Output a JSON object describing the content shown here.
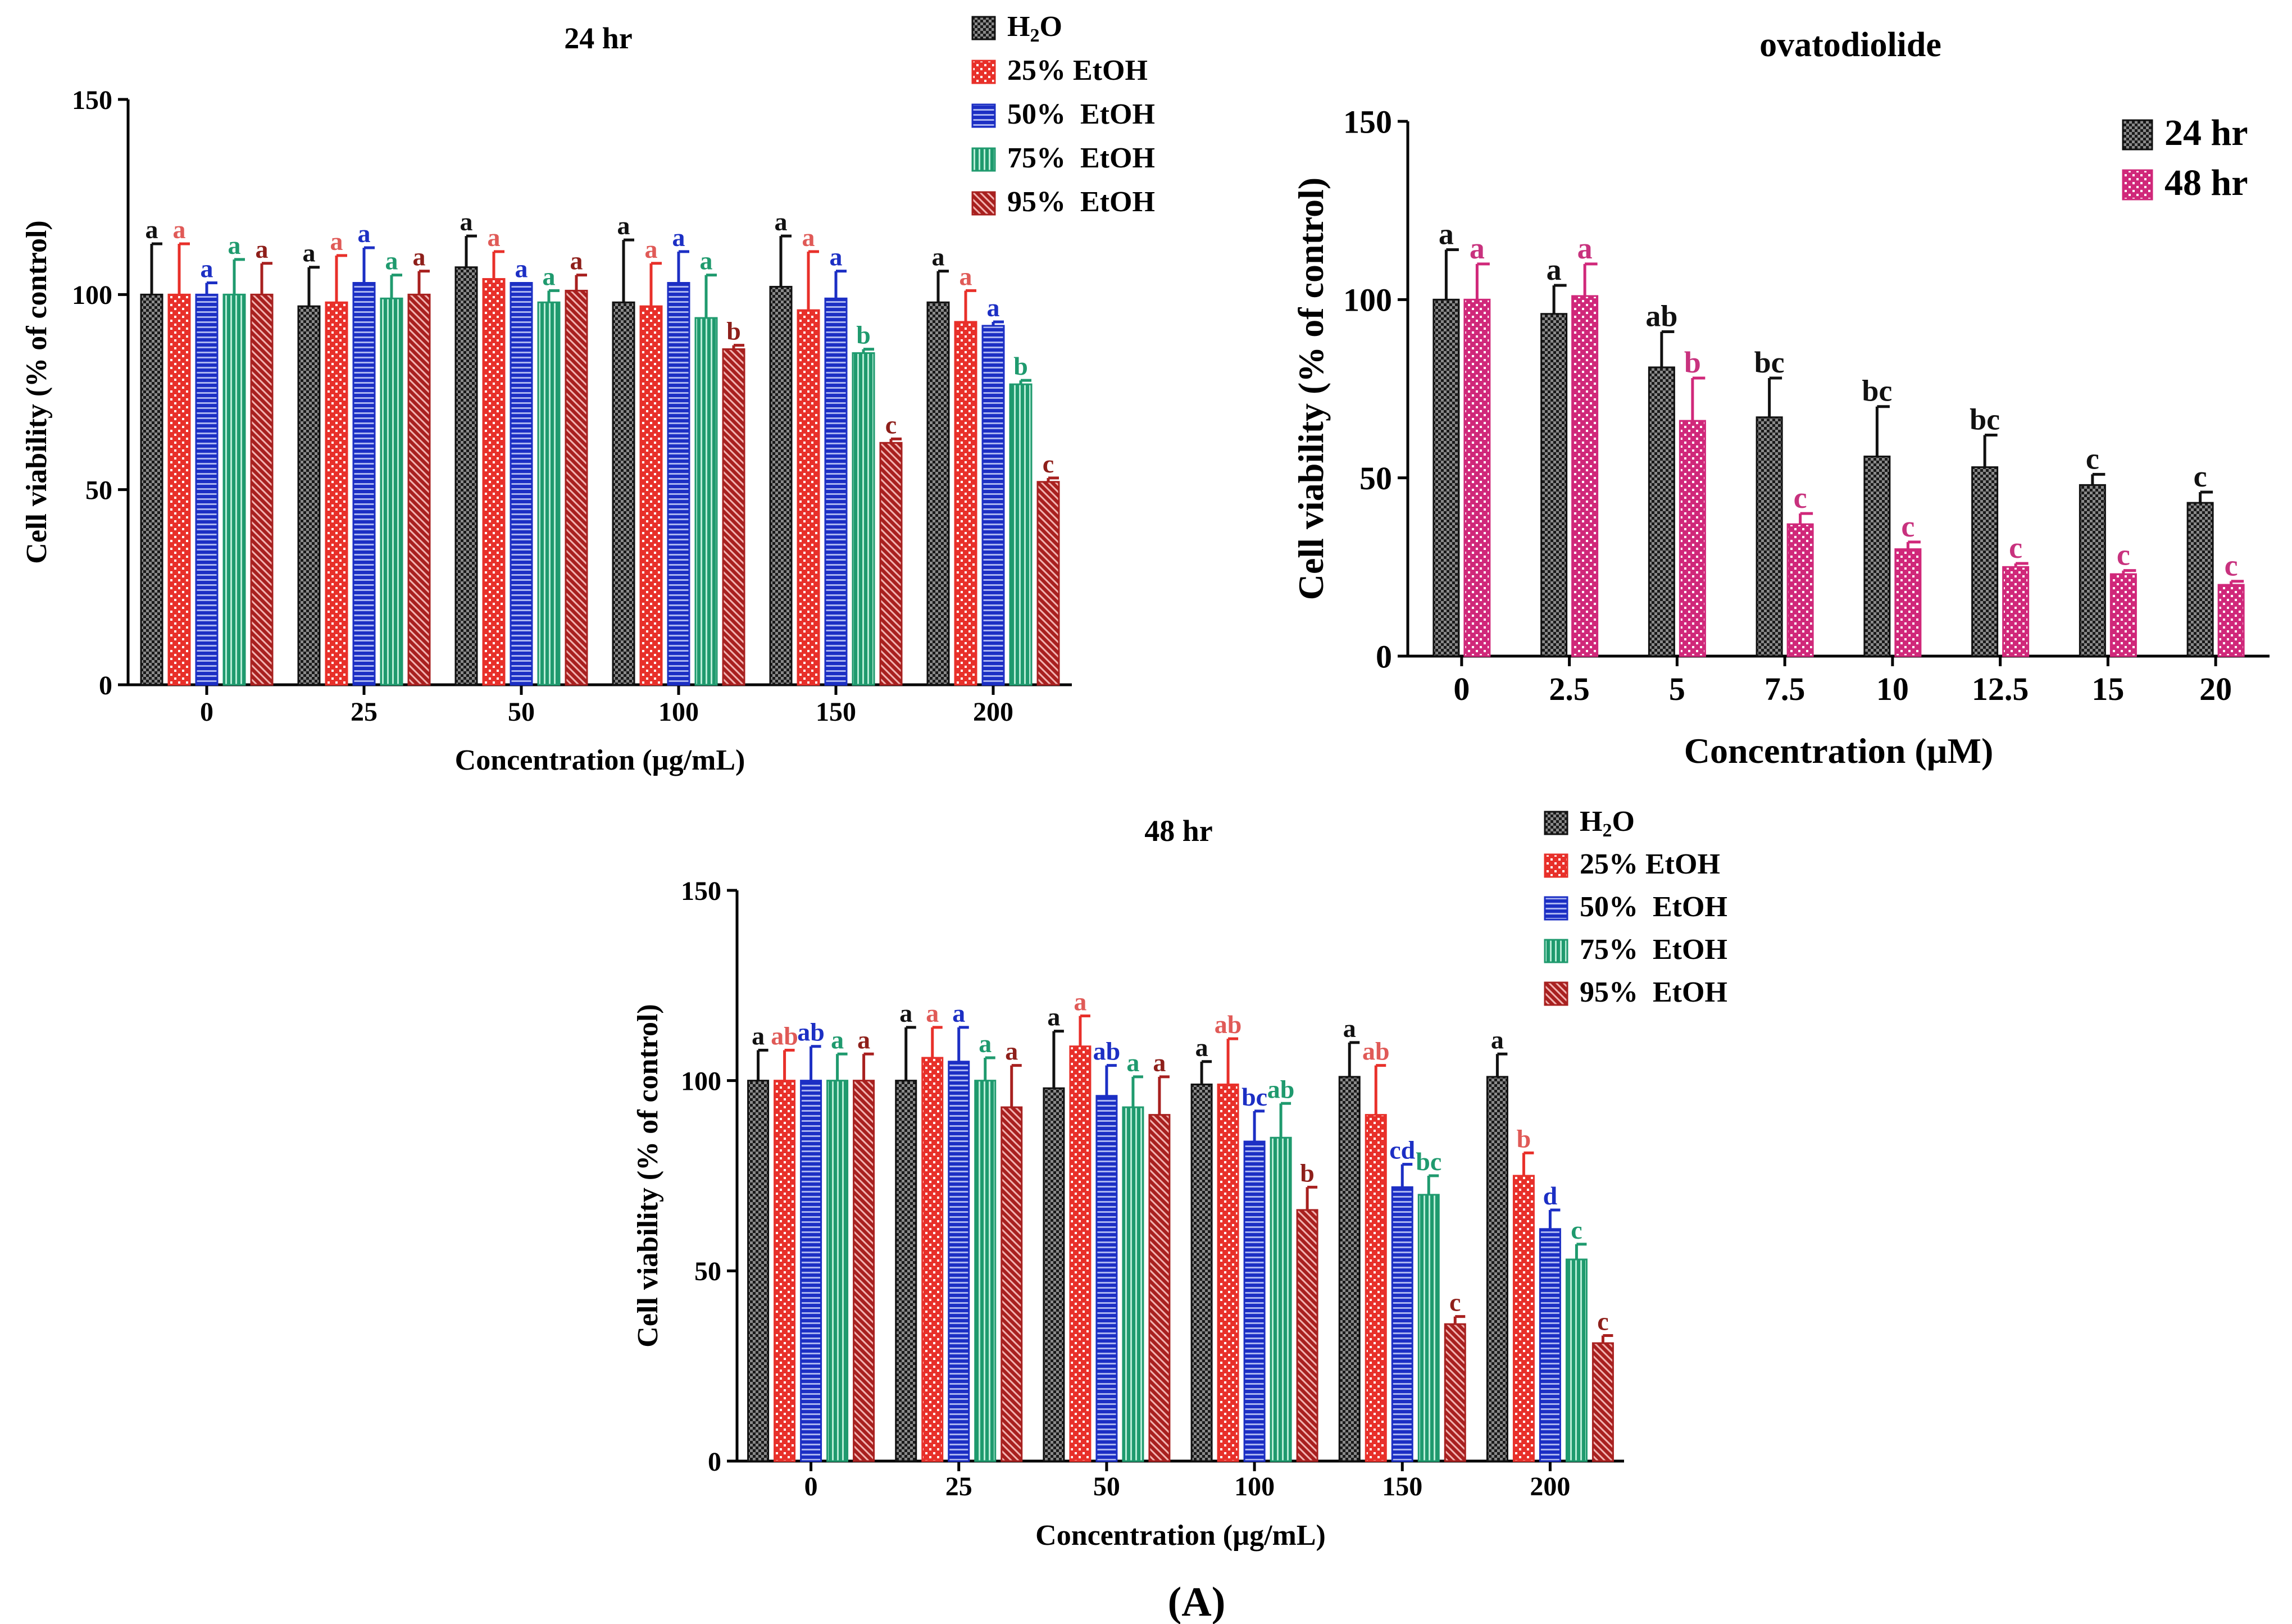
{
  "figure_label": "(A)",
  "chart_data": [
    {
      "id": "chart24",
      "type": "bar",
      "title": "24 hr",
      "xlabel": "Concentration (µg/mL)",
      "ylabel": "Cell viability (% of control)",
      "ylim": [
        0,
        150
      ],
      "yticks": [
        0,
        50,
        100,
        150
      ],
      "grid": false,
      "legend_position": "top-right",
      "categories": [
        "0",
        "25",
        "50",
        "100",
        "150",
        "200"
      ],
      "series": [
        {
          "name": "H2O",
          "legend": {
            "pre": "H",
            "sub": "2",
            "post": "O"
          },
          "pattern": "pat-h2o",
          "color": "#111111",
          "values": [
            100,
            97,
            107,
            98,
            102,
            98
          ],
          "errors": [
            13,
            10,
            8,
            16,
            13,
            8
          ],
          "letters": [
            "a",
            "a",
            "a",
            "a",
            "a",
            "a"
          ],
          "letter_color": "#111111"
        },
        {
          "name": "25% EtOH",
          "pattern": "pat-25",
          "color": "#e8302a",
          "values": [
            100,
            98,
            104,
            97,
            96,
            93
          ],
          "errors": [
            13,
            12,
            7,
            11,
            15,
            8
          ],
          "letters": [
            "a",
            "a",
            "a",
            "a",
            "a",
            "a"
          ],
          "letter_color": "#e05a57"
        },
        {
          "name": "50%  EtOH",
          "pattern": "pat-50",
          "color": "#1c2fc4",
          "values": [
            100,
            103,
            103,
            103,
            99,
            92
          ],
          "errors": [
            3,
            9,
            0,
            8,
            7,
            1
          ],
          "letters": [
            "a",
            "a",
            "a",
            "a",
            "a",
            "a"
          ],
          "letter_color": "#1c2fc4"
        },
        {
          "name": "75%  EtOH",
          "pattern": "pat-75",
          "color": "#1f9a6e",
          "values": [
            100,
            99,
            98,
            94,
            85,
            77
          ],
          "errors": [
            9,
            6,
            3,
            11,
            1,
            1
          ],
          "letters": [
            "a",
            "a",
            "a",
            "a",
            "b",
            "b"
          ],
          "letter_color": "#1f9a6e"
        },
        {
          "name": "95%  EtOH",
          "pattern": "pat-95",
          "color": "#a8201f",
          "values": [
            100,
            100,
            101,
            86,
            62,
            52
          ],
          "errors": [
            8,
            6,
            4,
            1,
            1,
            1
          ],
          "letters": [
            "a",
            "a",
            "a",
            "b",
            "c",
            "c"
          ],
          "letter_color": "#8e1f1a"
        }
      ]
    },
    {
      "id": "chartOva",
      "type": "bar",
      "title": "ovatodiolide",
      "xlabel": "Concentration (µM)",
      "ylabel": "Cell viability (% of control)",
      "ylim": [
        0,
        150
      ],
      "yticks": [
        0,
        50,
        100,
        150
      ],
      "grid": false,
      "legend_position": "top-right",
      "categories": [
        "0",
        "2.5",
        "5",
        "7.5",
        "10",
        "12.5",
        "15",
        "20"
      ],
      "series": [
        {
          "name": "24 hr",
          "pattern": "pat-h2o",
          "color": "#111111",
          "values": [
            100,
            96,
            81,
            67,
            56,
            53,
            48,
            43
          ],
          "errors": [
            14,
            8,
            10,
            11,
            14,
            9,
            3,
            3
          ],
          "letters": [
            "a",
            "a",
            "ab",
            "bc",
            "bc",
            "bc",
            "c",
            "c"
          ],
          "letter_color": "#111111"
        },
        {
          "name": "48 hr",
          "pattern": "pat-pink",
          "color": "#d0287a",
          "values": [
            100,
            101,
            66,
            37,
            30,
            25,
            23,
            20
          ],
          "errors": [
            10,
            9,
            12,
            3,
            2,
            1,
            1,
            1
          ],
          "letters": [
            "a",
            "a",
            "b",
            "c",
            "c",
            "c",
            "c",
            "c"
          ],
          "letter_color": "#c8327e"
        }
      ]
    },
    {
      "id": "chart48",
      "type": "bar",
      "title": "48 hr",
      "xlabel": "Concentration (µg/mL)",
      "ylabel": "Cell viability (% of control)",
      "ylim": [
        0,
        150
      ],
      "yticks": [
        0,
        50,
        100,
        150
      ],
      "grid": false,
      "legend_position": "top-right",
      "categories": [
        "0",
        "25",
        "50",
        "100",
        "150",
        "200"
      ],
      "series": [
        {
          "name": "H2O",
          "legend": {
            "pre": "H",
            "sub": "2",
            "post": "O"
          },
          "pattern": "pat-h2o",
          "color": "#111111",
          "values": [
            100,
            100,
            98,
            99,
            101,
            101
          ],
          "errors": [
            8,
            14,
            15,
            6,
            9,
            6
          ],
          "letters": [
            "a",
            "a",
            "a",
            "a",
            "a",
            "a"
          ],
          "letter_color": "#111111"
        },
        {
          "name": "25% EtOH",
          "pattern": "pat-25",
          "color": "#e8302a",
          "values": [
            100,
            106,
            109,
            99,
            91,
            75
          ],
          "errors": [
            8,
            8,
            8,
            12,
            13,
            6
          ],
          "letters": [
            "ab",
            "a",
            "a",
            "ab",
            "ab",
            "b"
          ],
          "letter_color": "#e05a57"
        },
        {
          "name": "50%  EtOH",
          "pattern": "pat-50",
          "color": "#1c2fc4",
          "values": [
            100,
            105,
            96,
            84,
            72,
            61
          ],
          "errors": [
            9,
            9,
            8,
            8,
            6,
            5
          ],
          "letters": [
            "ab",
            "a",
            "ab",
            "bc",
            "cd",
            "d"
          ],
          "letter_color": "#1c2fc4"
        },
        {
          "name": "75%  EtOH",
          "pattern": "pat-75",
          "color": "#1f9a6e",
          "values": [
            100,
            100,
            93,
            85,
            70,
            53
          ],
          "errors": [
            7,
            6,
            8,
            9,
            5,
            4
          ],
          "letters": [
            "a",
            "a",
            "a",
            "ab",
            "bc",
            "c"
          ],
          "letter_color": "#1f9a6e"
        },
        {
          "name": "95%  EtOH",
          "pattern": "pat-95",
          "color": "#a8201f",
          "values": [
            100,
            93,
            91,
            66,
            36,
            31
          ],
          "errors": [
            7,
            11,
            10,
            6,
            2,
            2
          ],
          "letters": [
            "a",
            "a",
            "a",
            "b",
            "c",
            "c"
          ],
          "letter_color": "#8e1f1a"
        }
      ]
    }
  ]
}
